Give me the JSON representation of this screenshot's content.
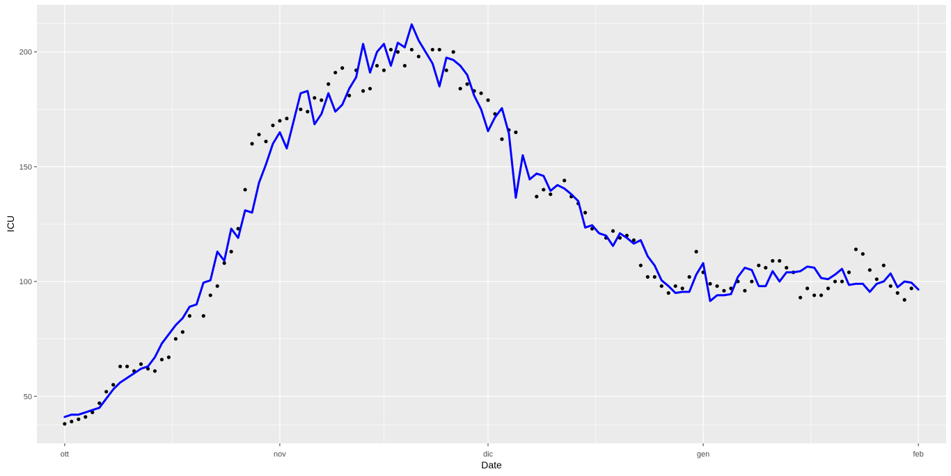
{
  "chart_data": {
    "type": "line",
    "xlabel": "Date",
    "ylabel": "ICU",
    "x_ticks": [
      {
        "date": "2020-10-01",
        "label": "ott"
      },
      {
        "date": "2020-11-01",
        "label": "nov"
      },
      {
        "date": "2020-12-01",
        "label": "dic"
      },
      {
        "date": "2021-01-01",
        "label": "gen"
      },
      {
        "date": "2021-02-01",
        "label": "feb"
      }
    ],
    "y_ticks": [
      50,
      100,
      150,
      200
    ],
    "xlim": [
      "2020-09-27",
      "2021-02-05"
    ],
    "ylim": [
      29.5,
      220.5
    ],
    "grid": true,
    "background_color": "#EBEBEB",
    "start_date": "2020-10-01",
    "series": [
      {
        "kind": "points",
        "color": "#000000",
        "values": [
          38,
          39,
          40,
          41,
          43,
          47,
          52,
          55,
          63,
          63,
          61,
          64,
          62,
          61,
          66,
          67,
          75,
          78,
          85,
          null,
          85,
          94,
          98,
          108,
          113,
          123,
          140,
          160,
          164,
          161,
          168,
          170,
          171,
          null,
          175,
          174,
          180,
          179,
          186,
          191,
          193,
          181,
          192,
          183,
          184,
          194,
          192,
          201,
          200,
          194,
          201,
          198,
          null,
          201,
          201,
          192,
          200,
          184,
          186,
          183,
          182,
          179,
          173,
          162,
          166,
          165,
          null,
          null,
          137,
          140,
          138,
          null,
          144,
          137,
          134,
          130,
          123,
          null,
          119,
          122,
          119,
          120,
          118,
          107,
          102,
          102,
          98,
          95,
          98,
          97,
          102,
          113,
          104,
          99,
          98,
          96,
          97,
          100,
          96,
          100,
          107,
          106,
          109,
          109,
          106,
          104,
          93,
          97,
          94,
          94,
          97,
          100,
          100,
          104,
          114,
          112,
          105,
          101,
          107,
          98,
          95,
          92,
          97
        ]
      },
      {
        "kind": "line",
        "color": "#0000FF",
        "values": [
          41,
          42,
          42,
          43,
          44,
          45,
          49,
          53,
          56,
          58,
          60,
          62,
          63,
          67,
          73,
          77,
          81,
          84,
          89,
          90,
          99.5,
          100.5,
          113,
          109,
          123,
          119,
          131,
          130,
          143,
          151,
          160,
          165,
          158,
          170,
          182,
          183,
          168.5,
          173,
          182,
          174,
          177,
          184,
          189,
          203.5,
          191,
          200,
          203.5,
          194,
          204,
          202,
          212,
          205,
          200,
          195,
          185,
          197.5,
          196.5,
          194,
          190,
          181,
          175,
          165.5,
          171.5,
          175.5,
          164.5,
          136.5,
          155,
          144.5,
          147,
          146,
          139.5,
          142,
          140.5,
          138,
          135,
          123.5,
          124.5,
          121,
          120,
          115.5,
          121,
          119,
          116.5,
          118,
          111,
          107,
          100.5,
          98,
          95,
          95.5,
          95.5,
          103,
          108,
          91.5,
          94,
          94,
          94.5,
          102,
          106,
          105,
          98,
          98,
          104.5,
          100,
          104,
          104,
          104.5,
          106.5,
          106,
          101.5,
          101,
          103,
          105.5,
          98.5,
          99,
          99,
          95.5,
          99,
          100,
          103.5,
          97.5,
          100,
          99.5,
          96.5
        ]
      }
    ]
  }
}
